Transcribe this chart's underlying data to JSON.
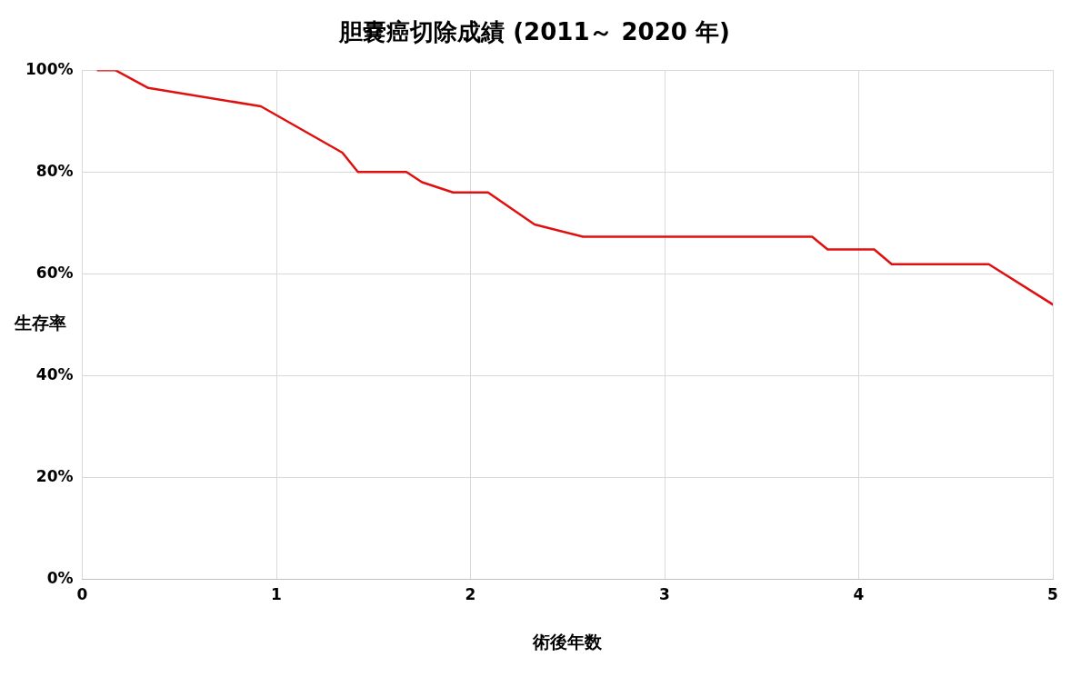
{
  "chart_data": {
    "type": "line",
    "title": "胆嚢癌切除成績 (2011～ 2020 年)",
    "xlabel": "術後年数",
    "ylabel": "生存率",
    "x": [
      0.08,
      0.17,
      0.34,
      0.92,
      1.34,
      1.42,
      1.67,
      1.75,
      1.91,
      2.09,
      2.33,
      2.58,
      3.76,
      3.84,
      4.08,
      4.17,
      4.67,
      5
    ],
    "series": [
      {
        "color": "#e01010",
        "values": [
          100,
          100,
          96.5,
          92.9,
          83.8,
          80,
          80,
          78,
          76,
          76,
          69.7,
          67.3,
          67.3,
          64.8,
          64.8,
          61.9,
          61.9,
          54
        ]
      }
    ],
    "xlim": [
      0,
      5
    ],
    "xticks": [
      0,
      1,
      2,
      3,
      4,
      5
    ],
    "ylim": [
      0,
      100
    ],
    "yticks": [
      {
        "value": 0,
        "label": "0%"
      },
      {
        "value": 20,
        "label": "20%"
      },
      {
        "value": 40,
        "label": "40%"
      },
      {
        "value": 60,
        "label": "60%"
      },
      {
        "value": 80,
        "label": "80%"
      },
      {
        "value": 100,
        "label": "100%"
      }
    ],
    "grid": true,
    "legend": false,
    "marker": "none",
    "line_style": "solid"
  }
}
